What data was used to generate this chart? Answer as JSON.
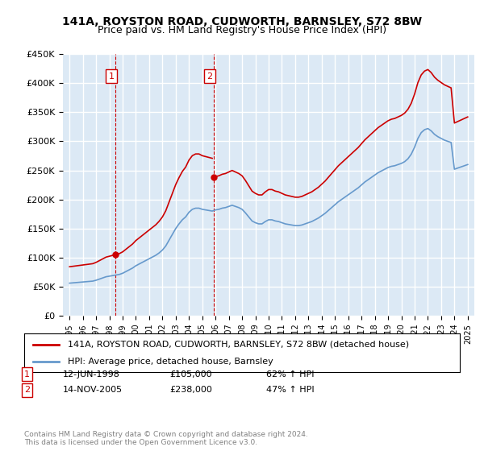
{
  "title": "141A, ROYSTON ROAD, CUDWORTH, BARNSLEY, S72 8BW",
  "subtitle": "Price paid vs. HM Land Registry's House Price Index (HPI)",
  "footer": "Contains HM Land Registry data © Crown copyright and database right 2024.\nThis data is licensed under the Open Government Licence v3.0.",
  "legend_line1": "141A, ROYSTON ROAD, CUDWORTH, BARNSLEY, S72 8BW (detached house)",
  "legend_line2": "HPI: Average price, detached house, Barnsley",
  "transaction1_date": "12-JUN-1998",
  "transaction1_price": "£105,000",
  "transaction1_hpi": "62% ↑ HPI",
  "transaction2_date": "14-NOV-2005",
  "transaction2_price": "£238,000",
  "transaction2_hpi": "47% ↑ HPI",
  "sale1_year": 1998.45,
  "sale1_price": 105000,
  "sale2_year": 2005.87,
  "sale2_price": 238000,
  "red_color": "#cc0000",
  "blue_color": "#6699cc",
  "background_color": "#dce9f5",
  "grid_color": "#ffffff",
  "ylim": [
    0,
    450000
  ],
  "xlim": [
    1994.5,
    2025.5
  ],
  "yticks": [
    0,
    50000,
    100000,
    150000,
    200000,
    250000,
    300000,
    350000,
    400000,
    450000
  ],
  "xticks": [
    1995,
    1996,
    1997,
    1998,
    1999,
    2000,
    2001,
    2002,
    2003,
    2004,
    2005,
    2006,
    2007,
    2008,
    2009,
    2010,
    2011,
    2012,
    2013,
    2014,
    2015,
    2016,
    2017,
    2018,
    2019,
    2020,
    2021,
    2022,
    2023,
    2024,
    2025
  ]
}
